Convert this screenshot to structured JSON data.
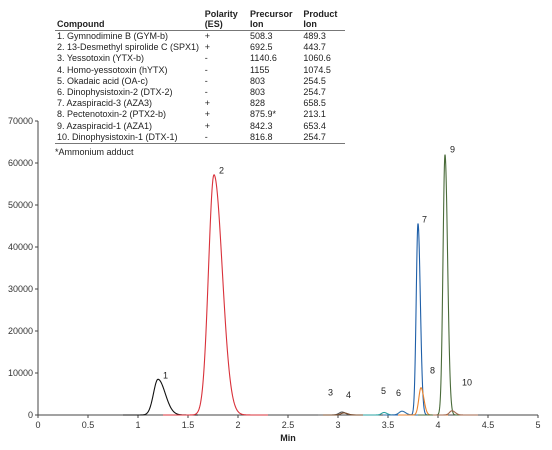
{
  "table": {
    "headers": {
      "compound": "Compound",
      "polarity": "Polarity (ES)",
      "precursor": "Precursor Ion",
      "product": "Product Ion"
    },
    "rows": [
      {
        "name": "1. Gymnodimine B (GYM-b)",
        "polarity": "+",
        "precursor": "508.3",
        "product": "489.3"
      },
      {
        "name": "2. 13-Desmethyl spirolide C (SPX1)",
        "polarity": "+",
        "precursor": "692.5",
        "product": "443.7"
      },
      {
        "name": "3. Yessotoxin (YTX-b)",
        "polarity": "-",
        "precursor": "1140.6",
        "product": "1060.6"
      },
      {
        "name": "4. Homo-yessotoxin (hYTX)",
        "polarity": "-",
        "precursor": "1155",
        "product": "1074.5"
      },
      {
        "name": "5. Okadaic acid (OA-c)",
        "polarity": "-",
        "precursor": "803",
        "product": "254.5"
      },
      {
        "name": "6. Dinophysistoxin-2 (DTX-2)",
        "polarity": "-",
        "precursor": "803",
        "product": "254.7"
      },
      {
        "name": "7. Azaspiracid-3 (AZA3)",
        "polarity": "+",
        "precursor": "828",
        "product": "658.5"
      },
      {
        "name": "8. Pectenotoxin-2 (PTX2-b)",
        "polarity": "+",
        "precursor": "875.9*",
        "product": "213.1"
      },
      {
        "name": "9. Azaspiracid-1 (AZA1)",
        "polarity": "+",
        "precursor": "842.3",
        "product": "653.4"
      },
      {
        "name": "10. Dinophysistoxin-1 (DTX-1)",
        "polarity": "-",
        "precursor": "816.8",
        "product": "254.7"
      }
    ],
    "footnote": "*Ammonium adduct"
  },
  "chart_data": {
    "type": "line",
    "title": "",
    "xlabel": "Min",
    "ylabel": "",
    "xlim": [
      0,
      5
    ],
    "ylim": [
      0,
      70000
    ],
    "xticks": [
      "0",
      "0.5",
      "1",
      "1.5",
      "2",
      "2.5",
      "3",
      "3.5",
      "4",
      "4.5",
      "5"
    ],
    "xtick_values": [
      0,
      0.5,
      1,
      1.5,
      2,
      2.5,
      3,
      3.5,
      4,
      4.5,
      5
    ],
    "yticks": [
      "0",
      "10000",
      "20000",
      "30000",
      "40000",
      "50000",
      "60000",
      "70000"
    ],
    "ytick_values": [
      0,
      10000,
      20000,
      30000,
      40000,
      50000,
      60000,
      70000
    ],
    "grid": false,
    "series": [
      {
        "label": "1",
        "color": "#111111",
        "peak_rt": 1.2,
        "height": 8500,
        "width": 0.045,
        "tail": 1.6,
        "span": [
          0.85,
          1.6
        ],
        "label_at": [
          1.25,
          8700
        ]
      },
      {
        "label": "2",
        "color": "#d9313a",
        "peak_rt": 1.76,
        "height": 57200,
        "width": 0.055,
        "tail": 1.5,
        "span": [
          1.25,
          2.3
        ],
        "label_at": [
          1.81,
          57500
        ]
      },
      {
        "label": "3",
        "color": "#555555",
        "peak_rt": 3.04,
        "height": 700,
        "width": 0.03,
        "tail": 1.2,
        "span": [
          2.8,
          3.3
        ],
        "label_at": [
          2.9,
          4600
        ]
      },
      {
        "label": "4",
        "color": "#7a4b2a",
        "peak_rt": 3.06,
        "height": 500,
        "width": 0.03,
        "tail": 1.2,
        "span": [
          2.85,
          3.35
        ],
        "label_at": [
          3.08,
          4000
        ]
      },
      {
        "label": "5",
        "color": "#2aa3a3",
        "peak_rt": 3.46,
        "height": 600,
        "width": 0.025,
        "tail": 1.2,
        "span": [
          3.25,
          3.65
        ],
        "label_at": [
          3.43,
          5000
        ]
      },
      {
        "label": "6",
        "color": "#2f6fa8",
        "peak_rt": 3.64,
        "height": 900,
        "width": 0.03,
        "tail": 1.2,
        "span": [
          3.45,
          3.85
        ],
        "label_at": [
          3.58,
          4500
        ]
      },
      {
        "label": "7",
        "color": "#1f5fa8",
        "peak_rt": 3.8,
        "height": 45600,
        "width": 0.018,
        "tail": 1.3,
        "span": [
          3.55,
          4.05
        ],
        "label_at": [
          3.84,
          45800
        ]
      },
      {
        "label": "8",
        "color": "#e8822c",
        "peak_rt": 3.83,
        "height": 6500,
        "width": 0.022,
        "tail": 1.3,
        "span": [
          3.6,
          4.1
        ],
        "label_at": [
          3.92,
          9900
        ]
      },
      {
        "label": "9",
        "color": "#4a6b3a",
        "peak_rt": 4.07,
        "height": 62000,
        "width": 0.02,
        "tail": 1.3,
        "span": [
          3.8,
          4.35
        ],
        "label_at": [
          4.12,
          62500
        ]
      },
      {
        "label": "10",
        "color": "#a0664a",
        "peak_rt": 4.14,
        "height": 1000,
        "width": 0.025,
        "tail": 1.3,
        "span": [
          3.95,
          4.4
        ],
        "label_at": [
          4.24,
          7000
        ]
      }
    ]
  }
}
